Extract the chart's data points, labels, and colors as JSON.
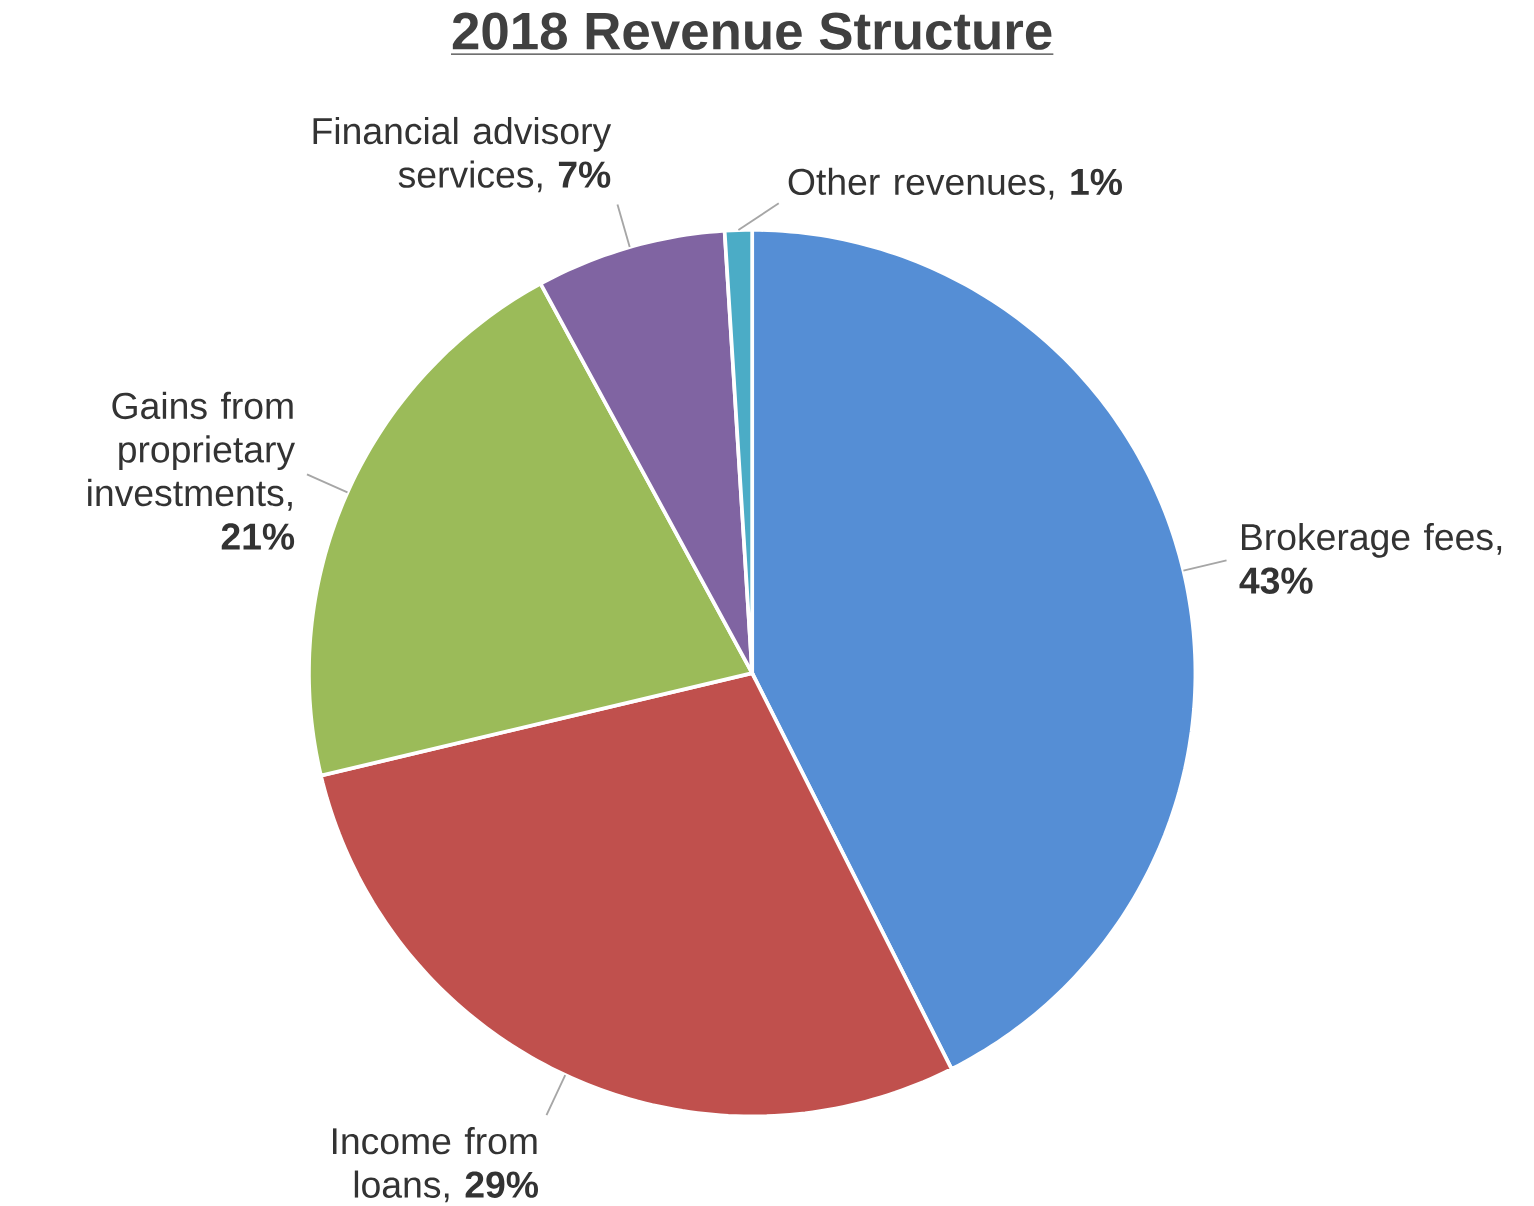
{
  "chart_data": {
    "type": "pie",
    "title": "2018 Revenue Structure",
    "categories": [
      "Brokerage fees",
      "Income from loans",
      "Gains from proprietary investments",
      "Financial advisory services",
      "Other revenues"
    ],
    "values": [
      43,
      29,
      21,
      7,
      1
    ],
    "value_labels": [
      ", **43%**",
      ", **29%**",
      ", **21%**",
      ", **7%**",
      ", **1%**"
    ],
    "colors": [
      "#558ed5",
      "#c0504d",
      "#9bbb59",
      "#8064a2",
      "#4bacc6"
    ]
  }
}
